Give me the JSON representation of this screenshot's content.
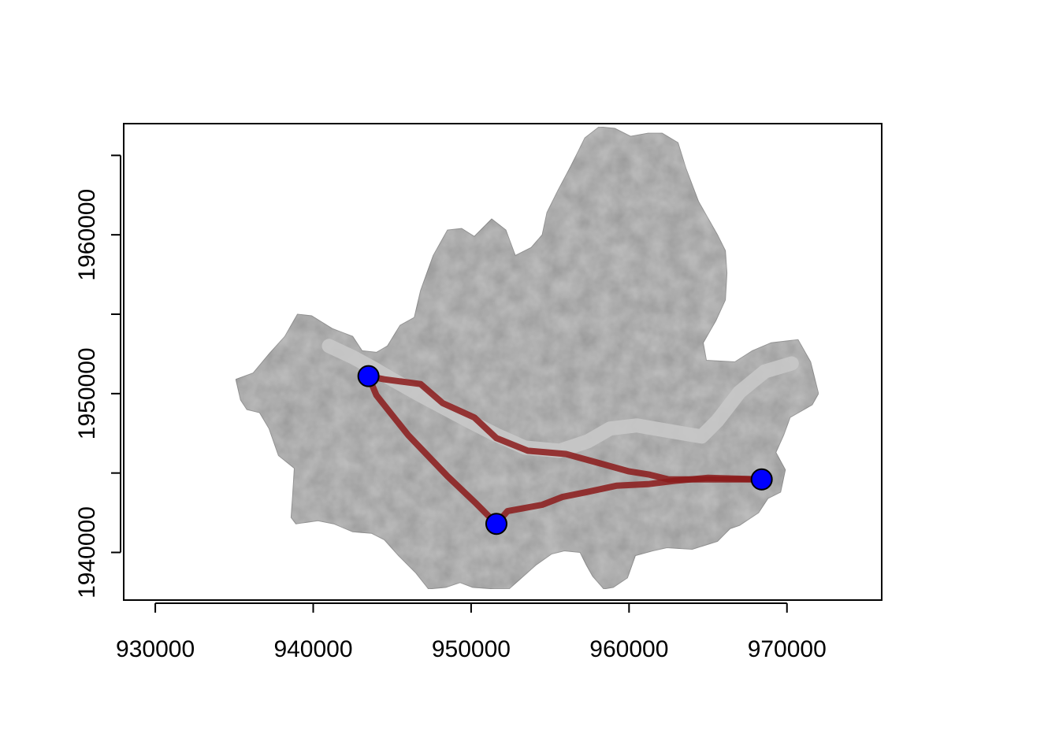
{
  "map": {
    "x_axis": {
      "range": [
        928000,
        976000
      ],
      "ticks": [
        930000,
        940000,
        950000,
        960000,
        970000
      ],
      "tick_labels": [
        "930000",
        "940000",
        "950000",
        "960000",
        "970000"
      ]
    },
    "y_axis": {
      "range": [
        1937000,
        1967000
      ],
      "ticks": [
        1940000,
        1945000,
        1950000,
        1955000,
        1960000,
        1965000
      ],
      "tick_labels": [
        "1940000",
        "",
        "1950000",
        "",
        "1960000",
        ""
      ]
    },
    "colors": {
      "relief": "#bdbdbd",
      "relief_dark": "#5a5a5a",
      "river": "#c8c8c8",
      "route": "#8b1a1a",
      "point_fill": "#0000ff",
      "point_edge": "#000000",
      "frame": "#000000"
    },
    "points": [
      {
        "x": 943500,
        "y": 1951100
      },
      {
        "x": 951600,
        "y": 1941800
      },
      {
        "x": 968400,
        "y": 1944600
      }
    ],
    "routes": [
      [
        [
          943500,
          1951100
        ],
        [
          944500,
          1950900
        ],
        [
          946800,
          1950600
        ],
        [
          948200,
          1949400
        ],
        [
          950200,
          1948500
        ],
        [
          951600,
          1947200
        ],
        [
          953600,
          1946400
        ],
        [
          956000,
          1946200
        ],
        [
          958200,
          1945600
        ],
        [
          960000,
          1945100
        ],
        [
          961300,
          1944900
        ],
        [
          962500,
          1944600
        ],
        [
          964800,
          1944600
        ],
        [
          968400,
          1944600
        ]
      ],
      [
        [
          943500,
          1951100
        ],
        [
          944000,
          1949900
        ],
        [
          946000,
          1947400
        ],
        [
          948500,
          1944800
        ],
        [
          950300,
          1943100
        ],
        [
          951600,
          1941800
        ]
      ],
      [
        [
          951600,
          1941800
        ],
        [
          952300,
          1942600
        ],
        [
          954500,
          1943000
        ],
        [
          955800,
          1943500
        ],
        [
          957300,
          1943800
        ],
        [
          959200,
          1944200
        ],
        [
          961200,
          1944300
        ],
        [
          962800,
          1944500
        ],
        [
          965000,
          1944700
        ],
        [
          968400,
          1944600
        ]
      ]
    ],
    "boundary": [
      [
        935100,
        1950900
      ],
      [
        936200,
        1951300
      ],
      [
        937200,
        1952500
      ],
      [
        938200,
        1953600
      ],
      [
        939000,
        1955000
      ],
      [
        939900,
        1954900
      ],
      [
        941200,
        1954100
      ],
      [
        942500,
        1953600
      ],
      [
        943100,
        1952700
      ],
      [
        944000,
        1952600
      ],
      [
        944700,
        1953000
      ],
      [
        945500,
        1954300
      ],
      [
        946400,
        1954800
      ],
      [
        946800,
        1956500
      ],
      [
        947600,
        1958700
      ],
      [
        948500,
        1960300
      ],
      [
        949400,
        1960400
      ],
      [
        950200,
        1959900
      ],
      [
        951300,
        1961000
      ],
      [
        952200,
        1960300
      ],
      [
        952800,
        1958700
      ],
      [
        953800,
        1959200
      ],
      [
        954500,
        1960000
      ],
      [
        954800,
        1961400
      ],
      [
        955500,
        1962800
      ],
      [
        956300,
        1964300
      ],
      [
        956800,
        1965300
      ],
      [
        957200,
        1966100
      ],
      [
        958100,
        1966800
      ],
      [
        959100,
        1966700
      ],
      [
        960100,
        1966200
      ],
      [
        961200,
        1966400
      ],
      [
        962100,
        1966400
      ],
      [
        963100,
        1965800
      ],
      [
        963600,
        1964200
      ],
      [
        964400,
        1962100
      ],
      [
        965600,
        1960000
      ],
      [
        966100,
        1959000
      ],
      [
        966200,
        1957600
      ],
      [
        966100,
        1955900
      ],
      [
        965500,
        1954600
      ],
      [
        964700,
        1953200
      ],
      [
        964900,
        1952100
      ],
      [
        966700,
        1952000
      ],
      [
        967800,
        1952700
      ],
      [
        969000,
        1953200
      ],
      [
        970700,
        1953400
      ],
      [
        971500,
        1952000
      ],
      [
        972000,
        1950000
      ],
      [
        971600,
        1949300
      ],
      [
        970200,
        1948500
      ],
      [
        969800,
        1947400
      ],
      [
        969300,
        1946300
      ],
      [
        969900,
        1945200
      ],
      [
        969600,
        1943800
      ],
      [
        968800,
        1943400
      ],
      [
        968200,
        1942500
      ],
      [
        967000,
        1941700
      ],
      [
        966400,
        1941500
      ],
      [
        965600,
        1940700
      ],
      [
        964000,
        1940200
      ],
      [
        962400,
        1940300
      ],
      [
        961500,
        1940100
      ],
      [
        960400,
        1939800
      ],
      [
        959900,
        1938400
      ],
      [
        959000,
        1937800
      ],
      [
        958400,
        1937700
      ],
      [
        957700,
        1938500
      ],
      [
        957300,
        1939200
      ],
      [
        956900,
        1940000
      ],
      [
        955900,
        1940100
      ],
      [
        955100,
        1939900
      ],
      [
        954100,
        1939200
      ],
      [
        953200,
        1938400
      ],
      [
        952400,
        1937700
      ],
      [
        951500,
        1937700
      ],
      [
        950100,
        1937800
      ],
      [
        949300,
        1938100
      ],
      [
        948400,
        1937800
      ],
      [
        947300,
        1937700
      ],
      [
        946500,
        1938700
      ],
      [
        945400,
        1939800
      ],
      [
        944500,
        1940800
      ],
      [
        943700,
        1941200
      ],
      [
        942500,
        1941300
      ],
      [
        941300,
        1941800
      ],
      [
        940300,
        1942000
      ],
      [
        939600,
        1941900
      ],
      [
        938900,
        1941800
      ],
      [
        938600,
        1942200
      ],
      [
        938700,
        1943600
      ],
      [
        938800,
        1945300
      ],
      [
        937800,
        1946100
      ],
      [
        937200,
        1947800
      ],
      [
        936600,
        1948800
      ],
      [
        935800,
        1949000
      ],
      [
        935400,
        1949600
      ],
      [
        935100,
        1950900
      ]
    ],
    "river": [
      [
        941000,
        1953000
      ],
      [
        942500,
        1952300
      ],
      [
        943800,
        1951600
      ],
      [
        945000,
        1950900
      ],
      [
        946600,
        1950000
      ],
      [
        948300,
        1949100
      ],
      [
        950000,
        1948200
      ],
      [
        951600,
        1947400
      ],
      [
        953400,
        1946600
      ],
      [
        955600,
        1946400
      ],
      [
        957400,
        1947000
      ],
      [
        958800,
        1947800
      ],
      [
        960500,
        1948000
      ],
      [
        962800,
        1947600
      ],
      [
        964600,
        1947300
      ],
      [
        965600,
        1948300
      ],
      [
        967000,
        1950100
      ],
      [
        968600,
        1951400
      ],
      [
        970300,
        1951900
      ]
    ]
  }
}
